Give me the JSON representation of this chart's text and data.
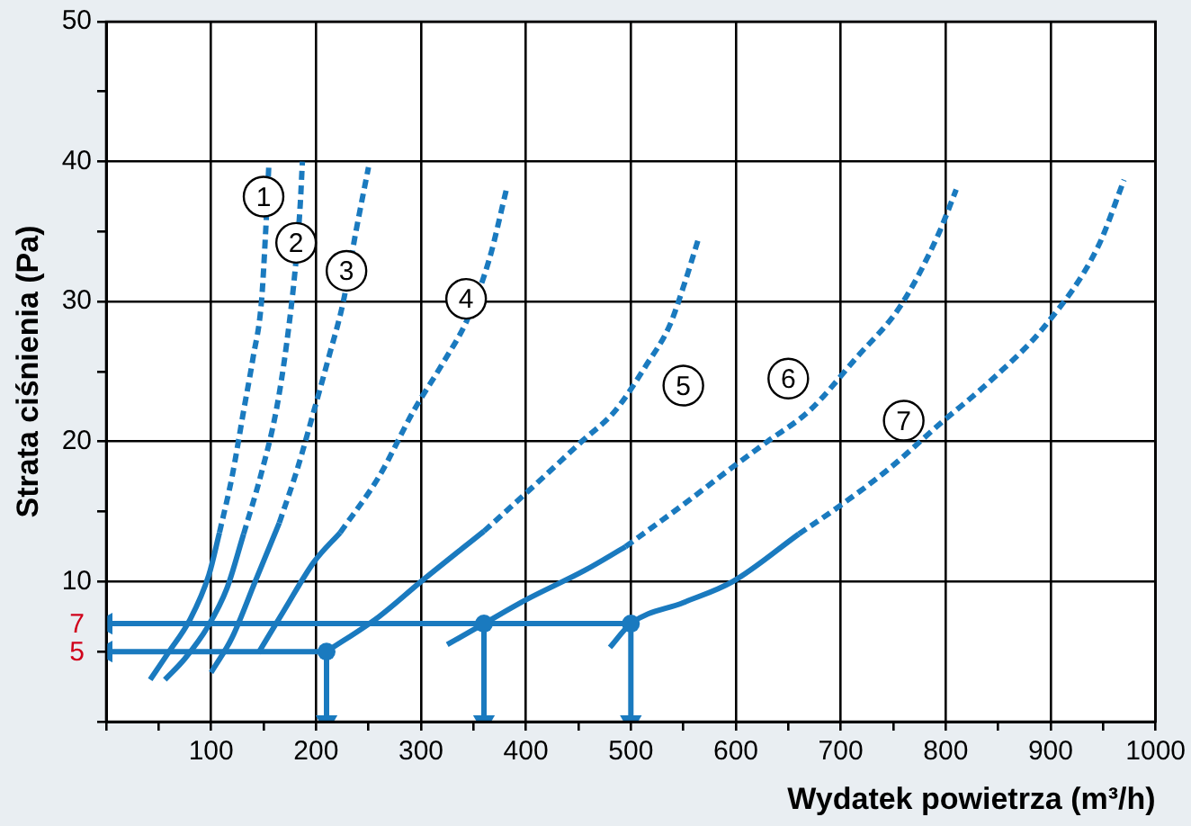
{
  "chart_data": {
    "type": "line",
    "xlabel": "Wydatek powietrza (m³/h)",
    "ylabel": "Strata ciśnienia (Pa)",
    "xlim": [
      0,
      1000
    ],
    "ylim": [
      0,
      50
    ],
    "xticks": [
      {
        "value": 0,
        "label": null
      },
      {
        "value": 50,
        "label": null
      },
      100,
      {
        "value": 150,
        "label": null
      },
      200,
      {
        "value": 250,
        "label": null
      },
      300,
      {
        "value": 350,
        "label": null
      },
      400,
      {
        "value": 450,
        "label": null
      },
      500,
      {
        "value": 550,
        "label": null
      },
      600,
      {
        "value": 650,
        "label": null
      },
      700,
      {
        "value": 750,
        "label": null
      },
      800,
      {
        "value": 850,
        "label": null
      },
      900,
      {
        "value": 950,
        "label": null
      },
      1000
    ],
    "yticks": [
      {
        "value": 0,
        "label": null
      },
      {
        "value": 5,
        "label": null
      },
      10,
      {
        "value": 15,
        "label": null
      },
      20,
      {
        "value": 25,
        "label": null
      },
      30,
      {
        "value": 35,
        "label": null
      },
      40,
      {
        "value": 45,
        "label": null
      },
      50
    ],
    "grid": true,
    "legend": false,
    "series": [
      {
        "color": "#1a7abf",
        "line_style": "solid",
        "x": [
          42,
          60,
          80,
          98,
          108
        ],
        "values": [
          3,
          5,
          7.3,
          10.5,
          13.5
        ]
      },
      {
        "color": "#1a7abf",
        "line_style": "dashed",
        "x": [
          108,
          120,
          131,
          140,
          148,
          152,
          155
        ],
        "values": [
          13.5,
          17.5,
          22.2,
          26,
          30,
          35,
          39.7
        ]
      },
      {
        "color": "#1a7abf",
        "line_style": "solid",
        "x": [
          56,
          75,
          97,
          115,
          131
        ],
        "values": [
          3,
          4.5,
          6.8,
          9.5,
          13.4
        ]
      },
      {
        "color": "#1a7abf",
        "line_style": "dashed",
        "x": [
          131,
          147,
          162,
          172,
          181,
          185,
          187
        ],
        "values": [
          13.4,
          17.5,
          22.2,
          27,
          33,
          37,
          40
        ]
      },
      {
        "color": "#1a7abf",
        "line_style": "solid",
        "x": [
          100,
          120,
          142,
          165
        ],
        "values": [
          3.5,
          6,
          10,
          14.2
        ]
      },
      {
        "color": "#1a7abf",
        "line_style": "dashed",
        "x": [
          165,
          182,
          198,
          212,
          226,
          238,
          250
        ],
        "values": [
          14.2,
          18,
          22.2,
          26,
          30,
          35,
          39.6
        ]
      },
      {
        "color": "#1a7abf",
        "line_style": "solid",
        "x": [
          145,
          170,
          198,
          223
        ],
        "values": [
          4.9,
          8,
          11.4,
          13.5
        ]
      },
      {
        "color": "#1a7abf",
        "line_style": "dashed",
        "x": [
          223,
          260,
          293,
          320,
          344,
          365,
          382
        ],
        "values": [
          13.5,
          17.5,
          22.2,
          25.5,
          28.7,
          33,
          38.2
        ]
      },
      {
        "color": "#1a7abf",
        "line_style": "solid",
        "x": [
          210,
          260,
          300,
          360
        ],
        "values": [
          5,
          7.5,
          10,
          13.6
        ]
      },
      {
        "color": "#1a7abf",
        "line_style": "dashed",
        "x": [
          360,
          410,
          453,
          485,
          515,
          537,
          552,
          564
        ],
        "values": [
          13.6,
          17,
          20,
          22.2,
          25.5,
          28.3,
          31.5,
          34.4
        ]
      },
      {
        "color": "#1a7abf",
        "line_style": "solid",
        "x": [
          325,
          360,
          400,
          456,
          495
        ],
        "values": [
          5.5,
          7,
          8.7,
          10.8,
          12.5
        ]
      },
      {
        "color": "#1a7abf",
        "line_style": "dashed",
        "x": [
          495,
          550,
          592,
          630,
          670,
          715,
          757,
          793,
          810
        ],
        "values": [
          12.5,
          15.5,
          17.9,
          20,
          22.2,
          26,
          29.7,
          34.8,
          38
        ]
      },
      {
        "color": "#1a7abf",
        "line_style": "solid",
        "x": [
          480,
          500,
          550,
          597,
          660
        ],
        "values": [
          5.3,
          7,
          8.5,
          10,
          13.4
        ]
      },
      {
        "color": "#1a7abf",
        "line_style": "dashed",
        "x": [
          660,
          697,
          745,
          795,
          845,
          895,
          945,
          970
        ],
        "values": [
          13.4,
          15.3,
          18,
          21.3,
          24.5,
          28.3,
          33.9,
          38.7
        ]
      },
      {
        "color": "#1a7abf",
        "line_style": "solid",
        "marker": "triangle",
        "x": [
          500,
          0
        ],
        "values": [
          7,
          7
        ]
      },
      {
        "color": "#1a7abf",
        "line_style": "solid",
        "marker": "triangle",
        "x": [
          210,
          0
        ],
        "values": [
          5,
          5
        ]
      },
      {
        "color": "#1a7abf",
        "line_style": "solid",
        "marker": "triangle",
        "x": [
          210,
          210
        ],
        "values": [
          5,
          0
        ]
      },
      {
        "color": "#1a7abf",
        "line_style": "solid",
        "marker": "triangle",
        "x": [
          360,
          360
        ],
        "values": [
          7,
          0
        ]
      },
      {
        "color": "#1a7abf",
        "line_style": "solid",
        "marker": "triangle",
        "x": [
          500,
          500
        ],
        "values": [
          7,
          0
        ]
      },
      {
        "type": "scatter",
        "color": "#1a7abf",
        "marker": "circle",
        "x": [
          210,
          360,
          500
        ],
        "values": [
          5,
          7,
          7
        ]
      }
    ],
    "annotations": [
      {
        "text": "1",
        "x": 150,
        "y": 37.5
      },
      {
        "text": "2",
        "x": 181,
        "y": 34.2
      },
      {
        "text": "3",
        "x": 229,
        "y": 32.2
      },
      {
        "text": "4",
        "x": 343,
        "y": 30.2
      },
      {
        "text": "5",
        "x": 550,
        "y": 24
      },
      {
        "text": "6",
        "x": 650,
        "y": 24.5
      },
      {
        "text": "7",
        "x": 760,
        "y": 21.5
      },
      {
        "text": "7",
        "x": 0,
        "y": 7
      },
      {
        "text": "5",
        "x": 0,
        "y": 5
      }
    ]
  }
}
